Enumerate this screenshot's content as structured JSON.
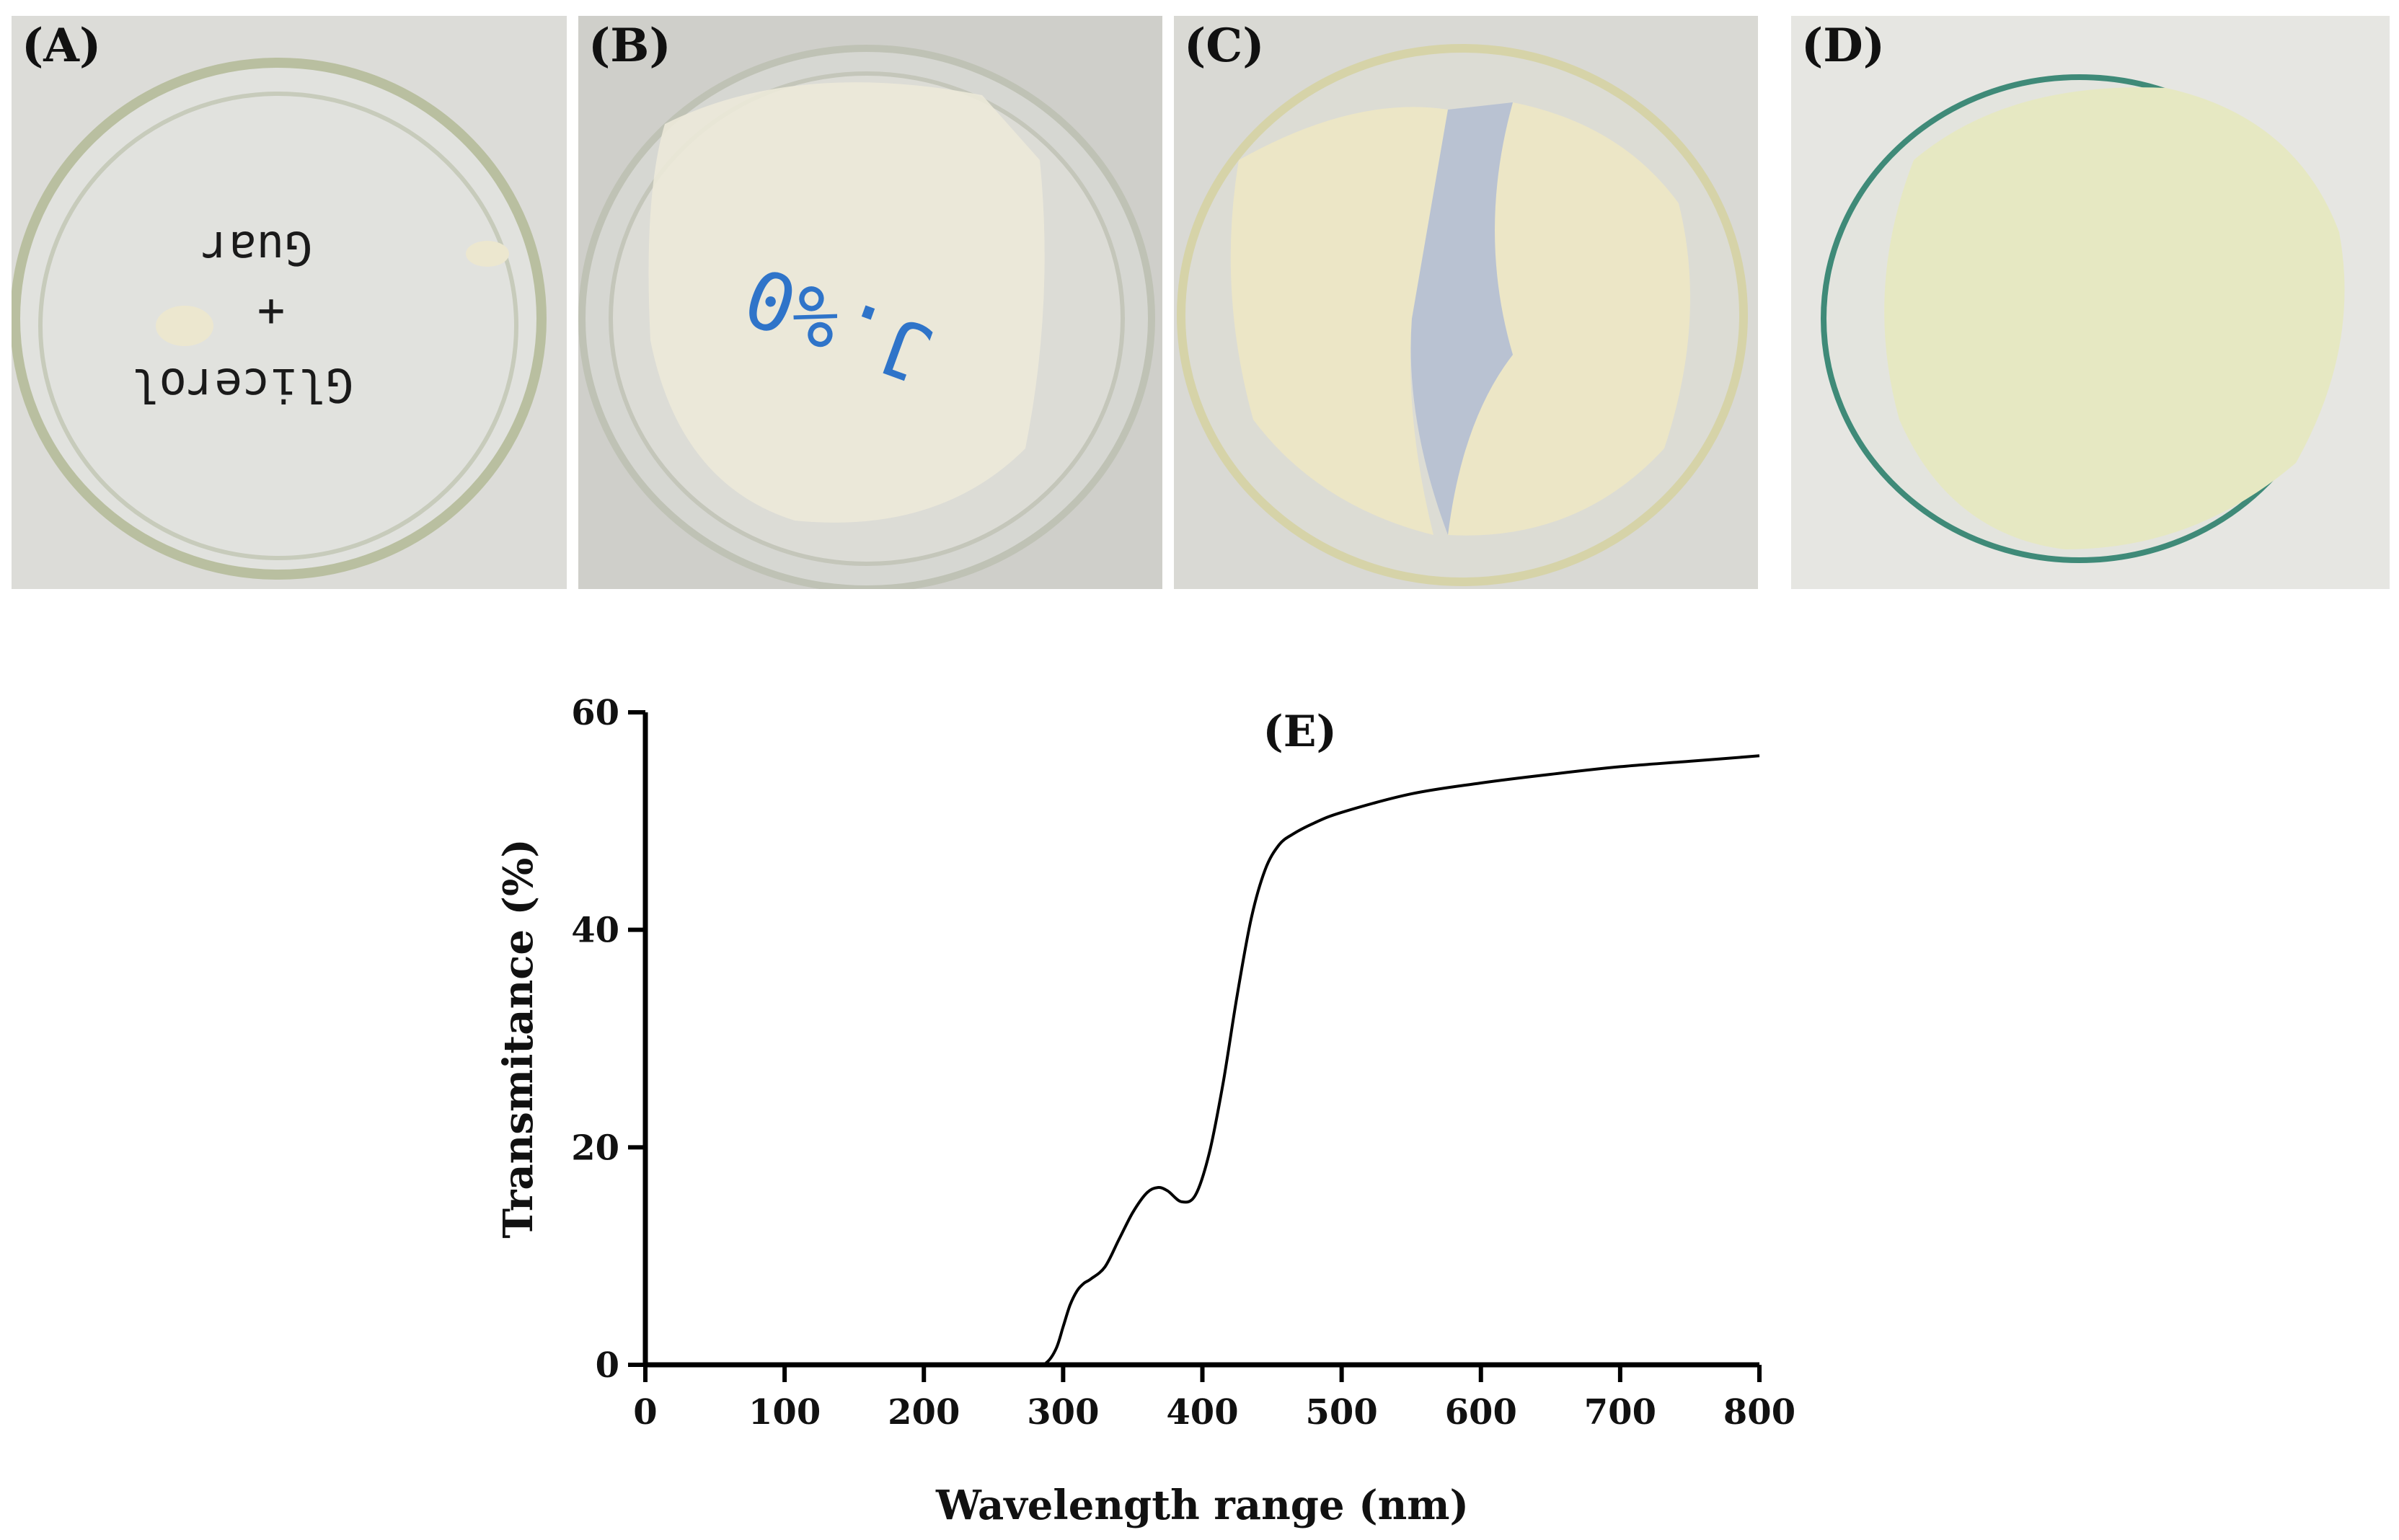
{
  "panels": [
    {
      "label": "(A)",
      "handwriting": [
        "Guar",
        "+",
        "Glicerol"
      ],
      "handwriting_color": "#1a1a1a"
    },
    {
      "label": "(B)",
      "handwriting": [
        "J.%0"
      ],
      "handwriting_color": "#2f74c9"
    },
    {
      "label": "(C)"
    },
    {
      "label": "(D)"
    }
  ],
  "colors": {
    "background_a": "#dcdcd8",
    "background_b": "#cfcfca",
    "background_c": "#d9d9d4",
    "background_d": "#e6e6e2",
    "film_b": "#ece9d9",
    "film_c": "#ece6c6",
    "film_d": "#e6e8c2",
    "dish_rim_d": "#3f8a78",
    "curve": "#000000"
  },
  "chart_data": {
    "type": "line",
    "panel_label": "(E)",
    "xlabel": "Wavelength range (nm)",
    "ylabel": "Transmitance (%)",
    "xlim": [
      0,
      800
    ],
    "ylim": [
      0,
      60
    ],
    "xticks": [
      0,
      100,
      200,
      300,
      400,
      500,
      600,
      700,
      800
    ],
    "yticks": [
      0,
      20,
      40,
      60
    ],
    "grid": false,
    "series": [
      {
        "x": [
          0,
          280,
          288,
          295,
          300,
          305,
          310,
          315,
          320,
          330,
          340,
          350,
          360,
          368,
          375,
          385,
          395,
          405,
          415,
          425,
          435,
          445,
          455,
          465,
          480,
          500,
          550,
          600,
          650,
          700,
          750,
          800
        ],
        "y": [
          0,
          0,
          0.2,
          1.5,
          3.5,
          5.5,
          6.8,
          7.5,
          7.9,
          9.0,
          11.5,
          14.0,
          15.8,
          16.3,
          16.0,
          15.0,
          15.6,
          19.5,
          26.0,
          34.0,
          41.0,
          45.5,
          47.8,
          48.8,
          49.8,
          50.8,
          52.5,
          53.5,
          54.3,
          55.0,
          55.5,
          56.0
        ]
      }
    ]
  }
}
